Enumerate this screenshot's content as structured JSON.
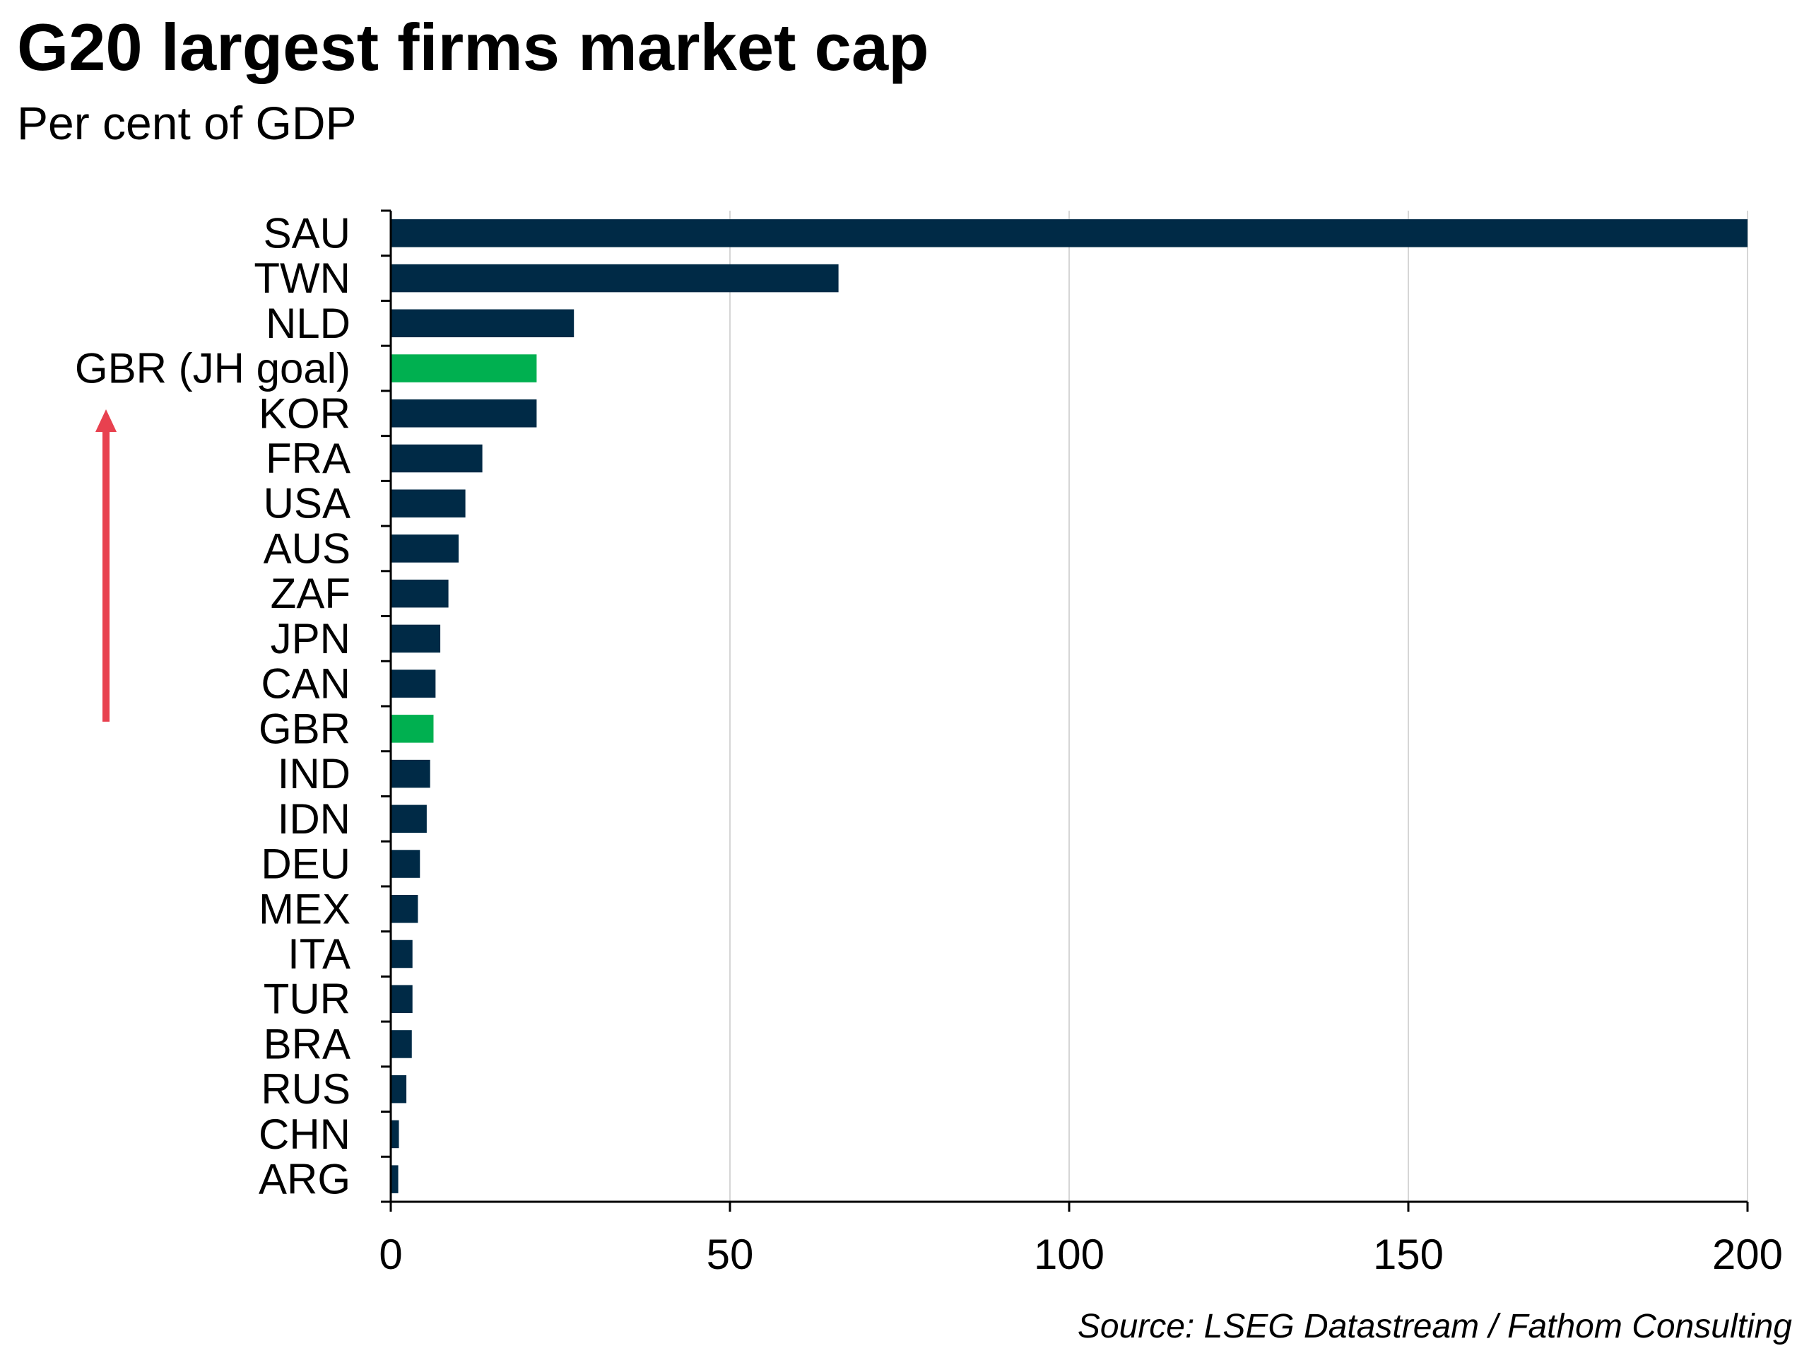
{
  "header": {
    "title": "G20 largest firms market cap",
    "subtitle": "Per cent of GDP"
  },
  "footer": {
    "source": "Source: LSEG Datastream / Fathom Consulting"
  },
  "colors": {
    "bar_default": "#002a46",
    "bar_highlight": "#00b050",
    "arrow": "#e8414f",
    "gridline": "#d6d6d6",
    "axis": "#000000"
  },
  "chart_data": {
    "type": "bar",
    "orientation": "horizontal",
    "title": "G20 largest firms market cap",
    "subtitle": "Per cent of GDP",
    "xlabel": "",
    "ylabel": "",
    "xlim": [
      0,
      200
    ],
    "xticks": [
      0,
      50,
      100,
      150,
      200
    ],
    "grid": "vertical",
    "categories": [
      "SAU",
      "TWN",
      "NLD",
      "GBR (JH goal)",
      "KOR",
      "FRA",
      "USA",
      "AUS",
      "ZAF",
      "JPN",
      "CAN",
      "GBR",
      "IND",
      "IDN",
      "DEU",
      "MEX",
      "ITA",
      "TUR",
      "BRA",
      "RUS",
      "CHN",
      "ARG"
    ],
    "values": [
      200,
      66,
      27,
      21.5,
      21.5,
      13.5,
      11,
      10,
      8.5,
      7.3,
      6.6,
      6.3,
      5.8,
      5.3,
      4.3,
      4.0,
      3.2,
      3.2,
      3.1,
      2.3,
      1.2,
      1.1
    ],
    "highlight": [
      "GBR (JH goal)",
      "GBR"
    ],
    "annotations": [
      {
        "type": "arrow",
        "direction": "up",
        "from_category": "GBR",
        "to_category": "GBR (JH goal)"
      }
    ]
  }
}
